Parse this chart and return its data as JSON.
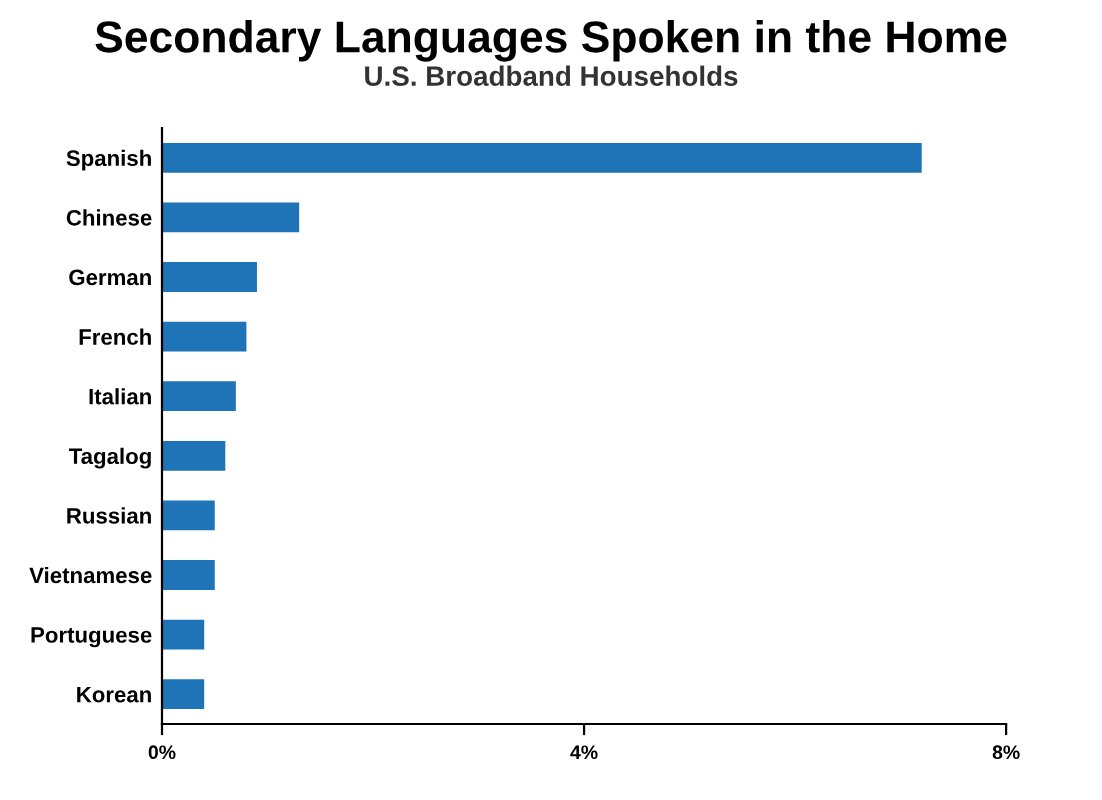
{
  "chart_data": {
    "type": "bar",
    "title": "Secondary Languages Spoken in the Home",
    "subtitle": "U.S. Broadband Households",
    "orientation": "horizontal",
    "categories": [
      "Spanish",
      "Chinese",
      "German",
      "French",
      "Italian",
      "Tagalog",
      "Russian",
      "Vietnamese",
      "Portuguese",
      "Korean"
    ],
    "values": [
      7.2,
      1.3,
      0.9,
      0.8,
      0.7,
      0.6,
      0.5,
      0.5,
      0.4,
      0.4
    ],
    "color": "#1f73b7",
    "xlim": [
      0,
      8
    ],
    "xticks": [
      {
        "value": 0,
        "label": "0%"
      },
      {
        "value": 4,
        "label": "4%"
      },
      {
        "value": 8,
        "label": "8%"
      }
    ],
    "grid": false
  }
}
